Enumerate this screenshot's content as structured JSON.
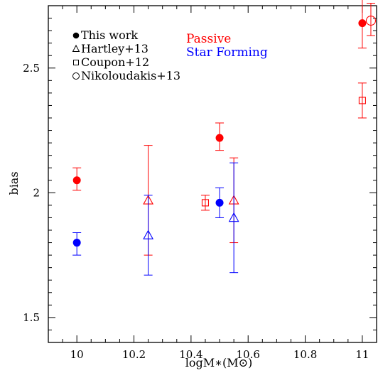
{
  "chart_data": {
    "type": "scatter",
    "xlabel": "logM∗(M⊙)",
    "ylabel": "bias",
    "xlim": [
      9.9,
      11.05
    ],
    "ylim": [
      1.4,
      2.75
    ],
    "x_ticks": [
      10,
      10.2,
      10.4,
      10.6,
      10.8,
      11
    ],
    "x_tick_labels": [
      "10",
      "10.2",
      "10.4",
      "10.6",
      "10.8",
      "11"
    ],
    "y_ticks": [
      1.5,
      2,
      2.5
    ],
    "y_tick_labels": [
      "1.5",
      "2",
      "2.5"
    ],
    "colors": {
      "passive": "#ff0000",
      "star_forming": "#0000ff"
    },
    "population_labels": [
      {
        "text": "Passive",
        "color": "#ff0000"
      },
      {
        "text": "Star Forming",
        "color": "#0000ff"
      }
    ],
    "legend": [
      {
        "marker": "filled-circle",
        "label": "This work"
      },
      {
        "marker": "triangle",
        "label": "Hartley+13"
      },
      {
        "marker": "square",
        "label": "Coupon+12"
      },
      {
        "marker": "open-circle",
        "label": "Nikoloudakis+13"
      }
    ],
    "series": [
      {
        "study": "This work",
        "population": "passive",
        "marker": "filled-circle",
        "points": [
          {
            "x": 10.0,
            "y": 2.05,
            "yerr": [
              2.01,
              2.1
            ]
          },
          {
            "x": 10.5,
            "y": 2.22,
            "yerr": [
              2.17,
              2.28
            ]
          },
          {
            "x": 11.0,
            "y": 2.68,
            "yerr": [
              2.58,
              2.78
            ]
          }
        ]
      },
      {
        "study": "This work",
        "population": "star_forming",
        "marker": "filled-circle",
        "points": [
          {
            "x": 10.0,
            "y": 1.8,
            "yerr": [
              1.75,
              1.84
            ]
          },
          {
            "x": 10.5,
            "y": 1.96,
            "yerr": [
              1.9,
              2.02
            ]
          }
        ]
      },
      {
        "study": "Hartley+13",
        "population": "passive",
        "marker": "triangle",
        "points": [
          {
            "x": 10.25,
            "y": 1.97,
            "yerr": [
              1.75,
              2.19
            ]
          },
          {
            "x": 10.55,
            "y": 1.97,
            "yerr": [
              1.8,
              2.14
            ]
          }
        ]
      },
      {
        "study": "Hartley+13",
        "population": "star_forming",
        "marker": "triangle",
        "points": [
          {
            "x": 10.25,
            "y": 1.83,
            "yerr": [
              1.67,
              1.99
            ]
          },
          {
            "x": 10.55,
            "y": 1.9,
            "yerr": [
              1.68,
              2.12
            ]
          }
        ]
      },
      {
        "study": "Coupon+12",
        "population": "passive",
        "marker": "square",
        "points": [
          {
            "x": 10.45,
            "y": 1.96,
            "yerr": [
              1.93,
              1.99
            ]
          },
          {
            "x": 11.0,
            "y": 2.37,
            "yerr": [
              2.3,
              2.44
            ]
          }
        ]
      },
      {
        "study": "Nikoloudakis+13",
        "population": "passive",
        "marker": "open-circle",
        "points": [
          {
            "x": 11.03,
            "y": 2.69,
            "yerr": [
              2.63,
              2.76
            ]
          }
        ]
      }
    ]
  }
}
